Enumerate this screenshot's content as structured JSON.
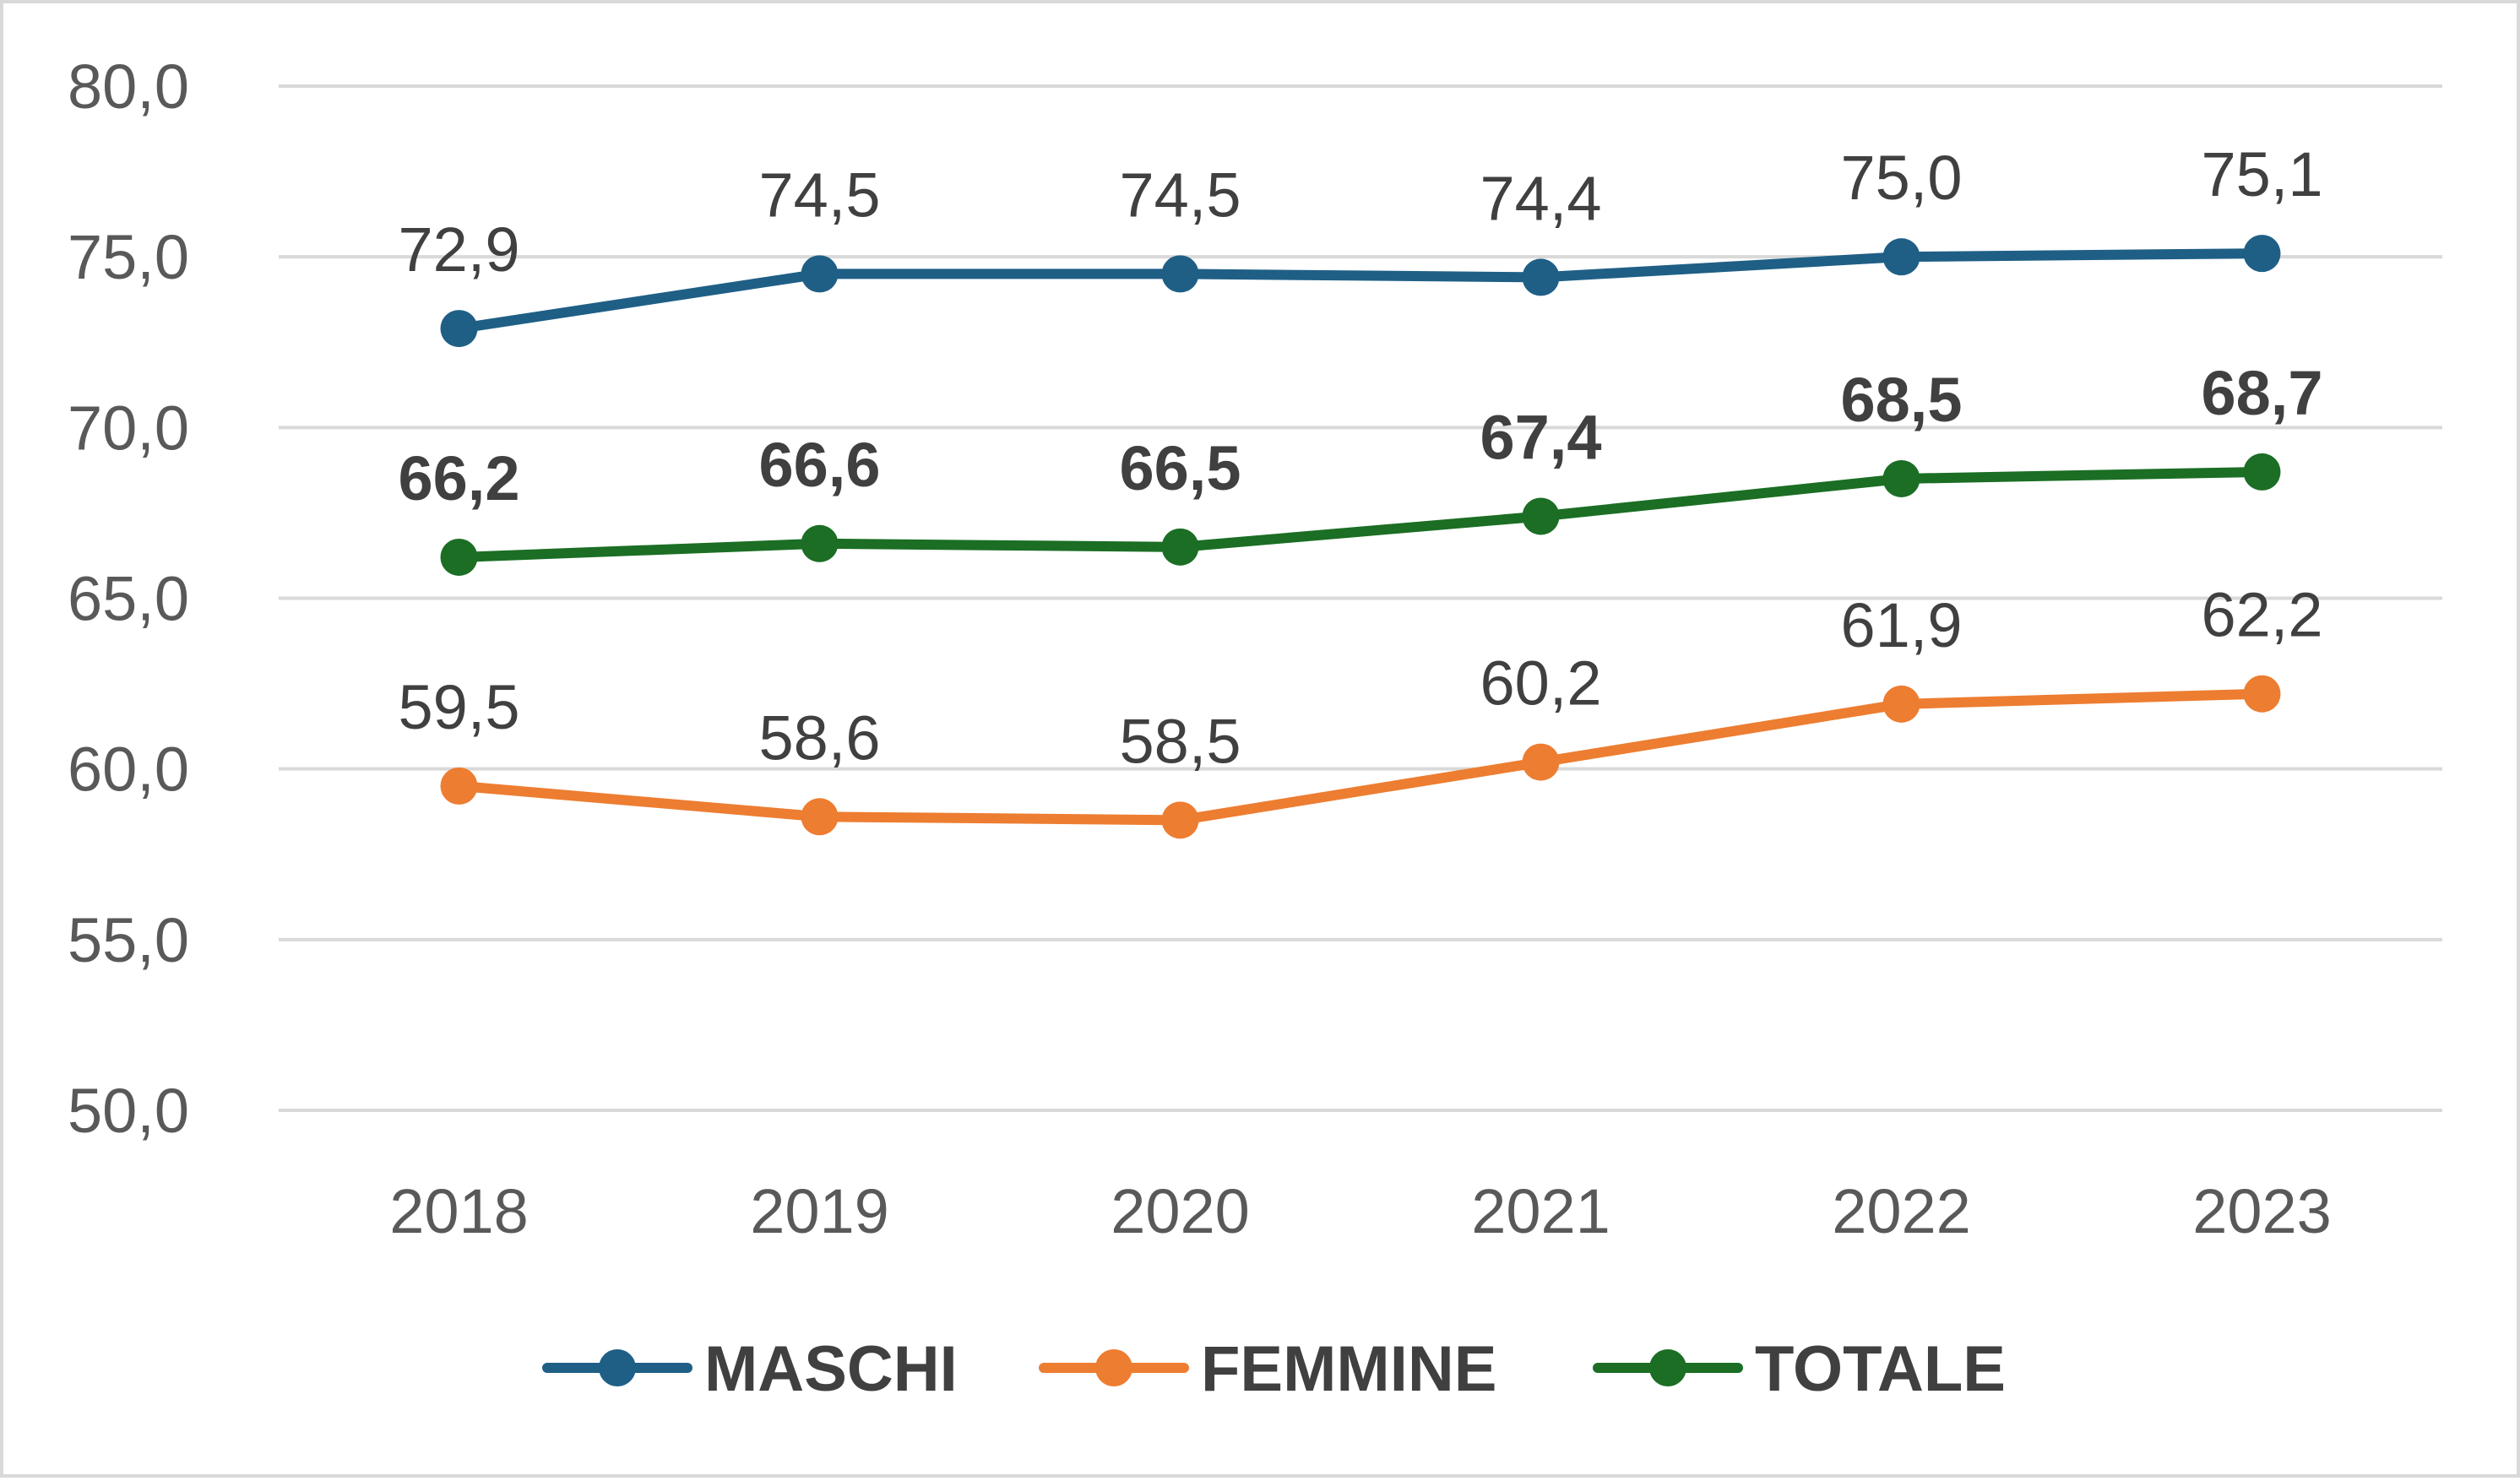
{
  "chart_data": {
    "type": "line",
    "categories": [
      "2018",
      "2019",
      "2020",
      "2021",
      "2022",
      "2023"
    ],
    "ylim": [
      50,
      80
    ],
    "y_ticks": [
      50,
      55,
      60,
      65,
      70,
      75,
      80
    ],
    "y_tick_labels": [
      "50,0",
      "55,0",
      "60,0",
      "65,0",
      "70,0",
      "75,0",
      "80,0"
    ],
    "grid": true,
    "legend_position": "bottom",
    "series": [
      {
        "name": "MASCHI",
        "color": "#1f5f86",
        "bold_labels": false,
        "values": [
          72.9,
          74.5,
          74.5,
          74.4,
          75.0,
          75.1
        ],
        "labels": [
          "72,9",
          "74,5",
          "74,5",
          "74,4",
          "75,0",
          "75,1"
        ]
      },
      {
        "name": "FEMMINE",
        "color": "#ed7d31",
        "bold_labels": false,
        "values": [
          59.5,
          58.6,
          58.5,
          60.2,
          61.9,
          62.2
        ],
        "labels": [
          "59,5",
          "58,6",
          "58,5",
          "60,2",
          "61,9",
          "62,2"
        ]
      },
      {
        "name": "TOTALE",
        "color": "#1b6e24",
        "bold_labels": true,
        "values": [
          66.2,
          66.6,
          66.5,
          67.4,
          68.5,
          68.7
        ],
        "labels": [
          "66,2",
          "66,6",
          "66,5",
          "67,4",
          "68,5",
          "68,7"
        ]
      }
    ]
  }
}
